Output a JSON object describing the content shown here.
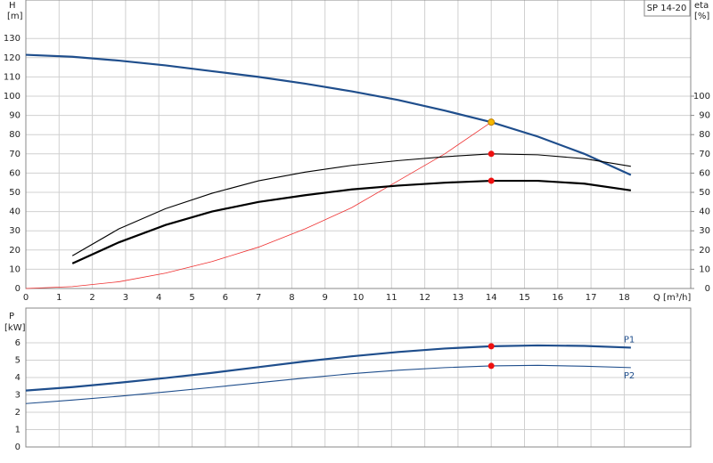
{
  "chart_data": [
    {
      "type": "line",
      "label": "SP 14-20",
      "ylabel": "H",
      "yunit": "[m]",
      "y2label": "eta",
      "y2unit": "[%]",
      "xlabel": "Q [m³/h]",
      "xlim": [
        0,
        20
      ],
      "xticks": [
        0,
        1,
        2,
        3,
        4,
        5,
        6,
        7,
        8,
        9,
        10,
        11,
        12,
        13,
        14,
        15,
        16,
        17,
        18
      ],
      "ylim": [
        0,
        150
      ],
      "yticks": [
        0,
        10,
        20,
        30,
        40,
        50,
        60,
        70,
        80,
        90,
        100,
        110,
        120,
        130
      ],
      "y2lim": [
        0,
        150
      ],
      "y2ticks": [
        0,
        10,
        20,
        30,
        40,
        50,
        60,
        70,
        80,
        90,
        100
      ],
      "grid": true,
      "series": [
        {
          "color": "#1f4e8c",
          "width": 2.2,
          "x": [
            0,
            1.4,
            2.8,
            4.2,
            5.6,
            7,
            8.4,
            9.8,
            11.2,
            12.6,
            14,
            15.4,
            16.8,
            18.2
          ],
          "values": [
            121.5,
            120.5,
            118.5,
            116,
            113,
            110,
            106.5,
            102.5,
            98,
            92.5,
            86.5,
            79,
            70,
            59
          ]
        },
        {
          "color": "#ee3030",
          "width": 0.8,
          "x": [
            0,
            1.4,
            2.8,
            4.2,
            5.6,
            7,
            8.4,
            9.8,
            11.2,
            12.6,
            14
          ],
          "values": [
            0,
            1,
            3.5,
            8,
            14,
            21.5,
            31,
            42,
            56,
            70,
            86.5
          ]
        },
        {
          "color": "#000000",
          "width": 1.1,
          "axis": "y2",
          "x": [
            1.4,
            2.8,
            4.2,
            5.6,
            7,
            8.4,
            9.8,
            11.2,
            12.6,
            14,
            15.4,
            16.8,
            18.2
          ],
          "values": [
            17,
            31,
            41.5,
            49.5,
            56,
            60.5,
            64,
            66.5,
            68.5,
            70,
            69.5,
            67.5,
            63.5
          ]
        },
        {
          "color": "#000000",
          "width": 2.2,
          "axis": "y2",
          "x": [
            1.4,
            2.8,
            4.2,
            5.6,
            7,
            8.4,
            9.8,
            11.2,
            12.6,
            14,
            15.4,
            16.8,
            18.2
          ],
          "values": [
            13,
            24,
            33,
            40,
            45,
            48.5,
            51.5,
            53.5,
            55,
            56,
            56,
            54.5,
            51
          ]
        }
      ],
      "points": [
        {
          "x": 14,
          "y": 86.5,
          "color": "#f5b800"
        },
        {
          "x": 14,
          "y": 70,
          "color": "#ee1010",
          "axis": "y2"
        },
        {
          "x": 14,
          "y": 56,
          "color": "#ee1010",
          "axis": "y2"
        }
      ]
    },
    {
      "type": "line",
      "ylabel": "P",
      "yunit": "[kW]",
      "xlim": [
        0,
        20
      ],
      "xticks": [
        0,
        1,
        2,
        3,
        4,
        5,
        6,
        7,
        8,
        9,
        10,
        11,
        12,
        13,
        14,
        15,
        16,
        17,
        18
      ],
      "ylim": [
        0,
        8
      ],
      "yticks": [
        0,
        1,
        2,
        3,
        4,
        5,
        6
      ],
      "grid": true,
      "series": [
        {
          "name": "P1",
          "color": "#1f4e8c",
          "width": 2.2,
          "x": [
            0,
            1.4,
            2.8,
            4.2,
            5.6,
            7,
            8.4,
            9.8,
            11.2,
            12.6,
            14,
            15.4,
            16.8,
            18.2
          ],
          "values": [
            3.25,
            3.45,
            3.7,
            3.97,
            4.27,
            4.6,
            4.93,
            5.22,
            5.47,
            5.67,
            5.8,
            5.85,
            5.82,
            5.72
          ]
        },
        {
          "name": "P2",
          "color": "#1f4e8c",
          "width": 1.1,
          "x": [
            0,
            1.4,
            2.8,
            4.2,
            5.6,
            7,
            8.4,
            9.8,
            11.2,
            12.6,
            14,
            15.4,
            16.8,
            18.2
          ],
          "values": [
            2.5,
            2.7,
            2.92,
            3.17,
            3.43,
            3.7,
            3.97,
            4.22,
            4.42,
            4.57,
            4.67,
            4.7,
            4.65,
            4.57
          ]
        }
      ],
      "points": [
        {
          "x": 14,
          "y": 5.8,
          "color": "#ee1010"
        },
        {
          "x": 14,
          "y": 4.67,
          "color": "#ee1010"
        }
      ]
    }
  ]
}
